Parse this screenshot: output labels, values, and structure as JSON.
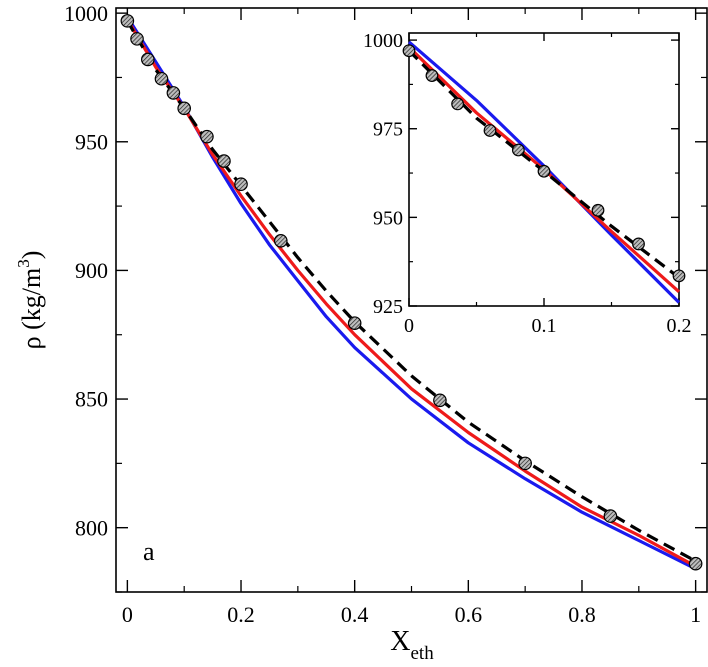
{
  "chart_data": [
    {
      "panel": "main",
      "type": "line",
      "panel_label": "a",
      "xlabel": "X",
      "xlabel_sub": "eth",
      "ylabel": "ρ (kg/m",
      "ylabel_sup": "3",
      "ylabel_close": ")",
      "xlim": [
        -0.02,
        1.02
      ],
      "ylim": [
        775,
        1002
      ],
      "xticks": [
        0,
        0.2,
        0.4,
        0.6,
        0.8,
        1
      ],
      "xticklabels": [
        "0",
        "0.2",
        "0.4",
        "0.6",
        "0.8",
        "1"
      ],
      "yticks": [
        800,
        850,
        900,
        950,
        1000
      ],
      "yticklabels": [
        "800",
        "850",
        "900",
        "950",
        "1000"
      ],
      "grid": false,
      "series": [
        {
          "style": "solid",
          "color": "#1a1aee",
          "x": [
            0,
            0.05,
            0.1,
            0.15,
            0.2,
            0.25,
            0.3,
            0.35,
            0.4,
            0.5,
            0.6,
            0.7,
            0.8,
            0.9,
            1.0
          ],
          "y": [
            998.5,
            981,
            963.5,
            944,
            926,
            910,
            896,
            882,
            870,
            850,
            833,
            819,
            806,
            795,
            784
          ]
        },
        {
          "style": "solid",
          "color": "#ee1a1a",
          "x": [
            0,
            0.05,
            0.1,
            0.15,
            0.2,
            0.25,
            0.3,
            0.35,
            0.4,
            0.5,
            0.6,
            0.7,
            0.8,
            0.9,
            1.0
          ],
          "y": [
            997.5,
            979,
            963,
            945,
            929,
            914,
            900,
            887,
            875,
            854,
            837,
            822,
            808,
            797,
            785
          ]
        },
        {
          "style": "dashed",
          "color": "#000000",
          "x": [
            0,
            0.05,
            0.1,
            0.15,
            0.2,
            0.25,
            0.3,
            0.35,
            0.4,
            0.5,
            0.6,
            0.7,
            0.8,
            0.9,
            1.0
          ],
          "y": [
            997,
            978,
            963,
            947,
            933,
            919,
            905,
            892,
            880,
            859,
            841,
            826,
            812,
            799,
            787
          ]
        },
        {
          "style": "markers",
          "color": "#444444",
          "x": [
            0,
            0.017,
            0.036,
            0.06,
            0.081,
            0.1,
            0.14,
            0.17,
            0.2,
            0.27,
            0.4,
            0.55,
            0.7,
            0.85,
            1.0
          ],
          "y": [
            997,
            990,
            982,
            974.5,
            969,
            963,
            952,
            942.5,
            933.5,
            911.5,
            879.5,
            849.5,
            825,
            804.5,
            786
          ]
        }
      ]
    },
    {
      "panel": "inset",
      "type": "line",
      "xlim": [
        0,
        0.2
      ],
      "ylim": [
        925,
        1002
      ],
      "xticks": [
        0,
        0.1,
        0.2
      ],
      "xticklabels": [
        "0",
        "0.1",
        "0.2"
      ],
      "yticks": [
        925,
        950,
        975,
        1000
      ],
      "yticklabels": [
        "925",
        "950",
        "975",
        "1000"
      ],
      "grid": false,
      "series": [
        {
          "style": "solid",
          "color": "#1a1aee",
          "x": [
            0,
            0.05,
            0.1,
            0.15,
            0.2
          ],
          "y": [
            999.5,
            983,
            964.5,
            945,
            926
          ]
        },
        {
          "style": "solid",
          "color": "#ee1a1a",
          "x": [
            0,
            0.05,
            0.1,
            0.15,
            0.2
          ],
          "y": [
            998,
            979.5,
            963.5,
            946,
            929
          ]
        },
        {
          "style": "dashed",
          "color": "#000000",
          "x": [
            0,
            0.05,
            0.1,
            0.15,
            0.2
          ],
          "y": [
            997,
            978,
            963,
            947.5,
            933
          ]
        },
        {
          "style": "markers",
          "color": "#444444",
          "x": [
            0,
            0.017,
            0.036,
            0.06,
            0.081,
            0.1,
            0.14,
            0.17,
            0.2
          ],
          "y": [
            997,
            990,
            982,
            974.5,
            969,
            963,
            952,
            942.5,
            933.5
          ]
        }
      ]
    }
  ]
}
